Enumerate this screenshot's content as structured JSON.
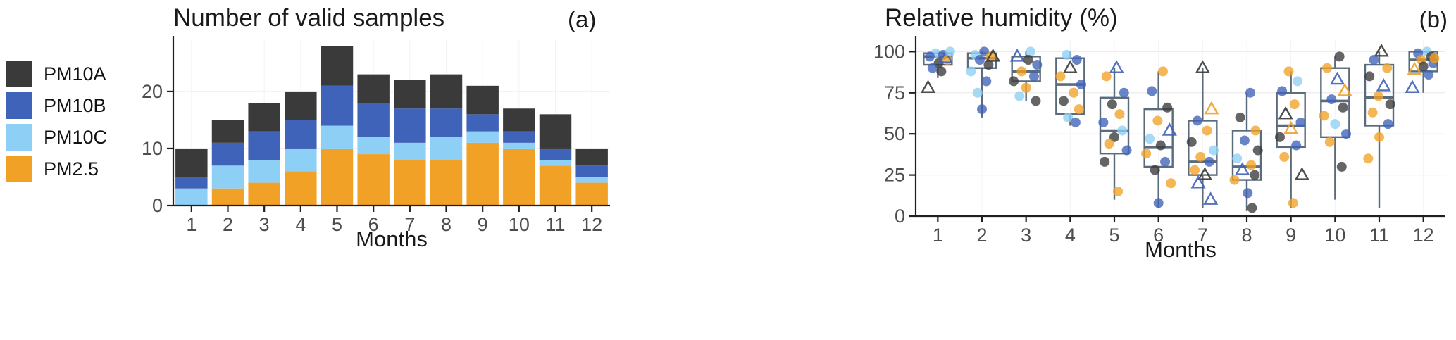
{
  "panel_a": {
    "title": "Number of valid samples",
    "tag": "(a)",
    "xlabel": "Months"
  },
  "panel_b": {
    "title": "Relative humidity (%)",
    "tag": "(b)",
    "xlabel": "Months"
  },
  "legend": {
    "items": [
      {
        "label": "PM10A",
        "color": "#3a3a3a"
      },
      {
        "label": "PM10B",
        "color": "#3f63b8"
      },
      {
        "label": "PM10C",
        "color": "#8ed0f5"
      },
      {
        "label": "PM2.5",
        "color": "#f2a127"
      }
    ]
  },
  "chart_data": [
    {
      "type": "bar",
      "stacked": true,
      "title": "Number of valid samples",
      "tag": "(a)",
      "categories": [
        "1",
        "2",
        "3",
        "4",
        "5",
        "6",
        "7",
        "8",
        "9",
        "10",
        "11",
        "12"
      ],
      "series": [
        {
          "name": "PM2.5",
          "color": "#f2a127",
          "values": [
            0,
            3,
            4,
            6,
            10,
            9,
            8,
            8,
            11,
            10,
            7,
            4
          ]
        },
        {
          "name": "PM10C",
          "color": "#8ed0f5",
          "values": [
            3,
            4,
            4,
            4,
            4,
            3,
            3,
            4,
            2,
            1,
            1,
            1
          ]
        },
        {
          "name": "PM10B",
          "color": "#3f63b8",
          "values": [
            2,
            4,
            5,
            5,
            7,
            6,
            6,
            5,
            3,
            2,
            2,
            2
          ]
        },
        {
          "name": "PM10A",
          "color": "#3a3a3a",
          "values": [
            5,
            4,
            5,
            5,
            7,
            5,
            5,
            6,
            5,
            4,
            6,
            3
          ]
        }
      ],
      "totals": [
        10,
        15,
        18,
        20,
        28,
        23,
        22,
        23,
        21,
        17,
        16,
        10
      ],
      "xlabel": "Months",
      "ylabel": "",
      "yticks": [
        0,
        10,
        20
      ],
      "ylim": [
        0,
        29
      ],
      "grid": true,
      "legend_position": "left"
    },
    {
      "type": "boxplot-scatter",
      "title": "Relative humidity (%)",
      "tag": "(b)",
      "categories": [
        "1",
        "2",
        "3",
        "4",
        "5",
        "6",
        "7",
        "8",
        "9",
        "10",
        "11",
        "12"
      ],
      "xlabel": "Months",
      "ylabel": "",
      "yticks": [
        0,
        25,
        50,
        75,
        100
      ],
      "ylim": [
        0,
        107
      ],
      "grid": true,
      "box_color": "#5a6b7c",
      "point_colors": {
        "a": "#3a3a3a",
        "b": "#3f63b8",
        "c": "#8ed0f5",
        "o": "#f2a127"
      },
      "point_series_names": {
        "a": "PM10A",
        "b": "PM10B",
        "c": "PM10C",
        "o": "PM2.5"
      },
      "boxes": [
        [
          84,
          92,
          97,
          99,
          100
        ],
        [
          60,
          90,
          96,
          99,
          100
        ],
        [
          70,
          82,
          88,
          97,
          100
        ],
        [
          55,
          62,
          80,
          96,
          100
        ],
        [
          10,
          38,
          52,
          72,
          90
        ],
        [
          5,
          30,
          42,
          65,
          88
        ],
        [
          5,
          25,
          33,
          58,
          90
        ],
        [
          3,
          22,
          30,
          52,
          75
        ],
        [
          5,
          42,
          55,
          75,
          88
        ],
        [
          10,
          48,
          70,
          90,
          97
        ],
        [
          5,
          55,
          72,
          92,
          100
        ],
        [
          75,
          88,
          95,
          100,
          100
        ]
      ],
      "points": [
        [
          {
            "v": 99,
            "c": "c",
            "s": "c",
            "dx": -0.05
          },
          {
            "v": 98,
            "c": "b",
            "s": "c",
            "dx": 0.12
          },
          {
            "v": 97,
            "c": "b",
            "s": "c",
            "dx": -0.18
          },
          {
            "v": 95,
            "c": "o",
            "s": "c",
            "dx": 0.22
          },
          {
            "v": 93,
            "c": "a",
            "s": "c",
            "dx": 0.02
          },
          {
            "v": 90,
            "c": "b",
            "s": "c",
            "dx": -0.12
          },
          {
            "v": 88,
            "c": "a",
            "s": "c",
            "dx": 0.08
          },
          {
            "v": 96,
            "c": "b",
            "s": "t",
            "dx": 0.18
          },
          {
            "v": 78,
            "c": "a",
            "s": "t",
            "dx": -0.22
          },
          {
            "v": 100,
            "c": "c",
            "s": "c",
            "dx": 0.28
          }
        ],
        [
          {
            "v": 100,
            "c": "b",
            "s": "c",
            "dx": 0.05
          },
          {
            "v": 98,
            "c": "c",
            "s": "c",
            "dx": -0.15
          },
          {
            "v": 97,
            "c": "o",
            "s": "c",
            "dx": 0.2
          },
          {
            "v": 95,
            "c": "b",
            "s": "c",
            "dx": -0.05
          },
          {
            "v": 92,
            "c": "a",
            "s": "c",
            "dx": 0.15
          },
          {
            "v": 88,
            "c": "c",
            "s": "c",
            "dx": -0.25
          },
          {
            "v": 82,
            "c": "b",
            "s": "c",
            "dx": 0.1
          },
          {
            "v": 75,
            "c": "c",
            "s": "c",
            "dx": -0.1
          },
          {
            "v": 65,
            "c": "b",
            "s": "c",
            "dx": 0.0
          },
          {
            "v": 97,
            "c": "a",
            "s": "t",
            "dx": 0.25
          }
        ],
        [
          {
            "v": 100,
            "c": "c",
            "s": "c",
            "dx": 0.1
          },
          {
            "v": 97,
            "c": "b",
            "s": "t",
            "dx": -0.2
          },
          {
            "v": 95,
            "c": "a",
            "s": "c",
            "dx": 0.05
          },
          {
            "v": 92,
            "c": "b",
            "s": "c",
            "dx": 0.25
          },
          {
            "v": 88,
            "c": "o",
            "s": "c",
            "dx": -0.1
          },
          {
            "v": 85,
            "c": "b",
            "s": "c",
            "dx": 0.18
          },
          {
            "v": 82,
            "c": "a",
            "s": "c",
            "dx": -0.28
          },
          {
            "v": 78,
            "c": "o",
            "s": "c",
            "dx": 0.0
          },
          {
            "v": 73,
            "c": "c",
            "s": "c",
            "dx": -0.15
          },
          {
            "v": 70,
            "c": "a",
            "s": "c",
            "dx": 0.22
          }
        ],
        [
          {
            "v": 98,
            "c": "c",
            "s": "c",
            "dx": -0.08
          },
          {
            "v": 95,
            "c": "b",
            "s": "c",
            "dx": 0.15
          },
          {
            "v": 90,
            "c": "a",
            "s": "t",
            "dx": 0.0
          },
          {
            "v": 85,
            "c": "o",
            "s": "c",
            "dx": -0.22
          },
          {
            "v": 80,
            "c": "b",
            "s": "c",
            "dx": 0.25
          },
          {
            "v": 75,
            "c": "o",
            "s": "c",
            "dx": 0.08
          },
          {
            "v": 70,
            "c": "a",
            "s": "c",
            "dx": -0.15
          },
          {
            "v": 65,
            "c": "o",
            "s": "c",
            "dx": 0.2
          },
          {
            "v": 60,
            "c": "c",
            "s": "c",
            "dx": -0.05
          },
          {
            "v": 57,
            "c": "b",
            "s": "c",
            "dx": 0.12
          }
        ],
        [
          {
            "v": 90,
            "c": "b",
            "s": "t",
            "dx": 0.05
          },
          {
            "v": 85,
            "c": "o",
            "s": "c",
            "dx": -0.18
          },
          {
            "v": 75,
            "c": "b",
            "s": "c",
            "dx": 0.22
          },
          {
            "v": 68,
            "c": "a",
            "s": "c",
            "dx": -0.05
          },
          {
            "v": 62,
            "c": "o",
            "s": "c",
            "dx": 0.12
          },
          {
            "v": 57,
            "c": "b",
            "s": "c",
            "dx": -0.25
          },
          {
            "v": 52,
            "c": "c",
            "s": "c",
            "dx": 0.18
          },
          {
            "v": 48,
            "c": "a",
            "s": "c",
            "dx": 0.0
          },
          {
            "v": 44,
            "c": "o",
            "s": "c",
            "dx": -0.12
          },
          {
            "v": 40,
            "c": "b",
            "s": "c",
            "dx": 0.28
          },
          {
            "v": 33,
            "c": "a",
            "s": "c",
            "dx": -0.22
          },
          {
            "v": 15,
            "c": "o",
            "s": "c",
            "dx": 0.08
          }
        ],
        [
          {
            "v": 88,
            "c": "o",
            "s": "c",
            "dx": 0.1
          },
          {
            "v": 76,
            "c": "b",
            "s": "c",
            "dx": -0.15
          },
          {
            "v": 66,
            "c": "a",
            "s": "c",
            "dx": 0.2
          },
          {
            "v": 58,
            "c": "o",
            "s": "c",
            "dx": -0.02
          },
          {
            "v": 52,
            "c": "b",
            "s": "t",
            "dx": 0.25
          },
          {
            "v": 47,
            "c": "c",
            "s": "c",
            "dx": -0.2
          },
          {
            "v": 43,
            "c": "a",
            "s": "c",
            "dx": 0.05
          },
          {
            "v": 38,
            "c": "o",
            "s": "c",
            "dx": -0.28
          },
          {
            "v": 33,
            "c": "b",
            "s": "c",
            "dx": 0.15
          },
          {
            "v": 28,
            "c": "a",
            "s": "c",
            "dx": -0.08
          },
          {
            "v": 20,
            "c": "o",
            "s": "c",
            "dx": 0.28
          },
          {
            "v": 8,
            "c": "b",
            "s": "c",
            "dx": 0.0
          }
        ],
        [
          {
            "v": 90,
            "c": "a",
            "s": "t",
            "dx": 0.0
          },
          {
            "v": 65,
            "c": "o",
            "s": "t",
            "dx": 0.2
          },
          {
            "v": 58,
            "c": "b",
            "s": "c",
            "dx": -0.12
          },
          {
            "v": 52,
            "c": "o",
            "s": "c",
            "dx": 0.1
          },
          {
            "v": 45,
            "c": "a",
            "s": "c",
            "dx": -0.25
          },
          {
            "v": 40,
            "c": "c",
            "s": "c",
            "dx": 0.25
          },
          {
            "v": 36,
            "c": "o",
            "s": "c",
            "dx": -0.05
          },
          {
            "v": 33,
            "c": "b",
            "s": "c",
            "dx": 0.15
          },
          {
            "v": 28,
            "c": "o",
            "s": "c",
            "dx": -0.18
          },
          {
            "v": 25,
            "c": "a",
            "s": "t",
            "dx": 0.05
          },
          {
            "v": 20,
            "c": "b",
            "s": "t",
            "dx": -0.1
          },
          {
            "v": 10,
            "c": "b",
            "s": "t",
            "dx": 0.18
          }
        ],
        [
          {
            "v": 75,
            "c": "b",
            "s": "c",
            "dx": 0.08
          },
          {
            "v": 60,
            "c": "a",
            "s": "c",
            "dx": -0.15
          },
          {
            "v": 52,
            "c": "o",
            "s": "c",
            "dx": 0.2
          },
          {
            "v": 46,
            "c": "b",
            "s": "c",
            "dx": -0.05
          },
          {
            "v": 40,
            "c": "a",
            "s": "c",
            "dx": 0.25
          },
          {
            "v": 35,
            "c": "c",
            "s": "c",
            "dx": -0.22
          },
          {
            "v": 31,
            "c": "o",
            "s": "c",
            "dx": 0.1
          },
          {
            "v": 28,
            "c": "b",
            "s": "t",
            "dx": -0.1
          },
          {
            "v": 25,
            "c": "a",
            "s": "c",
            "dx": 0.18
          },
          {
            "v": 22,
            "c": "o",
            "s": "c",
            "dx": -0.28
          },
          {
            "v": 14,
            "c": "b",
            "s": "c",
            "dx": 0.02
          },
          {
            "v": 5,
            "c": "a",
            "s": "c",
            "dx": 0.12
          }
        ],
        [
          {
            "v": 88,
            "c": "o",
            "s": "c",
            "dx": -0.05
          },
          {
            "v": 82,
            "c": "c",
            "s": "c",
            "dx": 0.15
          },
          {
            "v": 76,
            "c": "b",
            "s": "c",
            "dx": -0.2
          },
          {
            "v": 68,
            "c": "o",
            "s": "c",
            "dx": 0.08
          },
          {
            "v": 62,
            "c": "a",
            "s": "t",
            "dx": -0.12
          },
          {
            "v": 57,
            "c": "b",
            "s": "c",
            "dx": 0.22
          },
          {
            "v": 53,
            "c": "o",
            "s": "t",
            "dx": 0.0
          },
          {
            "v": 48,
            "c": "a",
            "s": "c",
            "dx": -0.25
          },
          {
            "v": 43,
            "c": "b",
            "s": "c",
            "dx": 0.12
          },
          {
            "v": 36,
            "c": "o",
            "s": "c",
            "dx": -0.15
          },
          {
            "v": 25,
            "c": "a",
            "s": "t",
            "dx": 0.25
          },
          {
            "v": 8,
            "c": "o",
            "s": "c",
            "dx": 0.05
          }
        ],
        [
          {
            "v": 97,
            "c": "a",
            "s": "c",
            "dx": 0.1
          },
          {
            "v": 90,
            "c": "o",
            "s": "c",
            "dx": -0.18
          },
          {
            "v": 83,
            "c": "b",
            "s": "t",
            "dx": 0.05
          },
          {
            "v": 76,
            "c": "o",
            "s": "t",
            "dx": 0.22
          },
          {
            "v": 71,
            "c": "b",
            "s": "c",
            "dx": -0.08
          },
          {
            "v": 66,
            "c": "a",
            "s": "c",
            "dx": 0.18
          },
          {
            "v": 61,
            "c": "o",
            "s": "c",
            "dx": -0.25
          },
          {
            "v": 56,
            "c": "c",
            "s": "c",
            "dx": 0.0
          },
          {
            "v": 50,
            "c": "b",
            "s": "c",
            "dx": 0.25
          },
          {
            "v": 45,
            "c": "o",
            "s": "c",
            "dx": -0.12
          },
          {
            "v": 30,
            "c": "a",
            "s": "c",
            "dx": 0.15
          }
        ],
        [
          {
            "v": 100,
            "c": "a",
            "s": "t",
            "dx": 0.05
          },
          {
            "v": 95,
            "c": "b",
            "s": "c",
            "dx": -0.12
          },
          {
            "v": 90,
            "c": "o",
            "s": "c",
            "dx": 0.18
          },
          {
            "v": 85,
            "c": "a",
            "s": "c",
            "dx": -0.22
          },
          {
            "v": 79,
            "c": "b",
            "s": "t",
            "dx": 0.1
          },
          {
            "v": 73,
            "c": "o",
            "s": "c",
            "dx": -0.02
          },
          {
            "v": 68,
            "c": "a",
            "s": "c",
            "dx": 0.25
          },
          {
            "v": 63,
            "c": "o",
            "s": "c",
            "dx": -0.15
          },
          {
            "v": 56,
            "c": "b",
            "s": "c",
            "dx": 0.2
          },
          {
            "v": 48,
            "c": "o",
            "s": "c",
            "dx": 0.0
          },
          {
            "v": 35,
            "c": "o",
            "s": "c",
            "dx": -0.25
          }
        ],
        [
          {
            "v": 100,
            "c": "c",
            "s": "c",
            "dx": 0.08
          },
          {
            "v": 99,
            "c": "b",
            "s": "c",
            "dx": -0.12
          },
          {
            "v": 97,
            "c": "a",
            "s": "c",
            "dx": 0.18
          },
          {
            "v": 95,
            "c": "o",
            "s": "c",
            "dx": -0.05
          },
          {
            "v": 93,
            "c": "b",
            "s": "c",
            "dx": 0.22
          },
          {
            "v": 91,
            "c": "a",
            "s": "c",
            "dx": 0.0
          },
          {
            "v": 89,
            "c": "o",
            "s": "t",
            "dx": -0.2
          },
          {
            "v": 86,
            "c": "b",
            "s": "c",
            "dx": 0.12
          },
          {
            "v": 78,
            "c": "b",
            "s": "t",
            "dx": -0.25
          },
          {
            "v": 96,
            "c": "o",
            "s": "c",
            "dx": 0.25
          }
        ]
      ]
    }
  ]
}
